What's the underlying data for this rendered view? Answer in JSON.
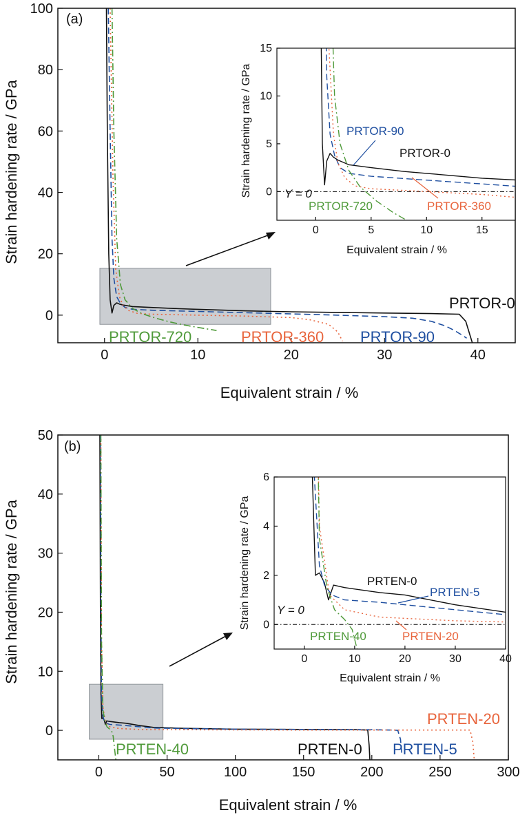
{
  "colors": {
    "black": "#111111",
    "blue": "#1f4fa0",
    "orange": "#e8643c",
    "green": "#4f9a3a",
    "zoom_box": "#b9bec3"
  },
  "chart_data": [
    {
      "type": "line",
      "panel_label": "(a)",
      "xlabel": "Equivalent strain / %",
      "ylabel": "Strain hardening rate / GPa",
      "xlim": [
        -5,
        44
      ],
      "ylim": [
        -9,
        100
      ],
      "xticks": [
        0,
        10,
        20,
        30,
        40
      ],
      "yticks": [
        0,
        20,
        40,
        60,
        80,
        100
      ],
      "zoom_box": {
        "x": [
          -0.5,
          17.8
        ],
        "y": [
          -3,
          15.3
        ]
      },
      "series": [
        {
          "name": "PRTOR-0",
          "color": "#111111",
          "dash": "solid",
          "x": [
            0.2,
            0.3,
            0.45,
            0.6,
            0.8,
            1.0,
            1.3,
            1.6,
            2.0,
            3,
            5,
            8,
            10,
            15,
            20,
            25,
            30,
            35,
            38,
            38.7,
            39.1,
            39.4
          ],
          "y": [
            100,
            60,
            20,
            5,
            0.7,
            3.2,
            4.0,
            3.6,
            3.3,
            2.8,
            2.5,
            2.1,
            1.9,
            1.4,
            1.1,
            0.9,
            0.7,
            0.5,
            0.3,
            -2,
            -6,
            -9
          ]
        },
        {
          "name": "PRTOR-90",
          "color": "#1f4fa0",
          "dash": "dashed",
          "x": [
            0.4,
            0.6,
            0.8,
            1.0,
            1.3,
            1.7,
            2.2,
            3,
            5,
            10,
            15,
            20,
            25,
            30,
            33,
            35,
            36.5,
            37.5,
            38.3,
            38.8
          ],
          "y": [
            100,
            60,
            25,
            12,
            6,
            3.8,
            2.5,
            1.9,
            1.6,
            1.2,
            0.8,
            0.4,
            0,
            -0.5,
            -1,
            -2,
            -3.5,
            -5,
            -6.5,
            -7.5
          ]
        },
        {
          "name": "PRTOR-360",
          "color": "#e8643c",
          "dash": "dotted",
          "x": [
            0.6,
            0.9,
            1.2,
            1.6,
            2.0,
            2.6,
            3.5,
            5,
            10,
            15,
            20,
            22,
            24,
            25,
            25.5
          ],
          "y": [
            100,
            45,
            15,
            6,
            3,
            1.5,
            0.6,
            0.3,
            0,
            -0.3,
            -0.8,
            -1.5,
            -3,
            -5.5,
            -8.5
          ]
        },
        {
          "name": "PRTOR-720",
          "color": "#4f9a3a",
          "dash": "dashdot",
          "x": [
            0.8,
            1.0,
            1.3,
            1.7,
            2.2,
            3,
            4,
            5.5,
            7,
            8.5,
            10,
            11,
            12
          ],
          "y": [
            100,
            60,
            25,
            10,
            5,
            2.2,
            0.5,
            -1,
            -2.2,
            -3.2,
            -4,
            -4.5,
            -5
          ]
        }
      ],
      "series_labels": {
        "PRTOR-0": "PRTOR-0",
        "PRTOR-90": "PRTOR-90",
        "PRTOR-360": "PRTOR-360",
        "PRTOR-720": "PRTOR-720"
      },
      "inset": {
        "xlabel": "Equivalent strain / %",
        "ylabel": "Strain hardening rate / GPa",
        "xlim": [
          -3.5,
          18
        ],
        "ylim": [
          -3,
          15
        ],
        "xticks": [
          0,
          5,
          10,
          15
        ],
        "yticks": [
          0,
          5,
          10,
          15
        ],
        "baseline_label": "Y = 0",
        "labels": {
          "PRTOR-90": "PRTOR-90",
          "PRTOR-0": "PRTOR-0",
          "PRTOR-360": "PRTOR-360",
          "PRTOR-720": "PRTOR-720"
        }
      }
    },
    {
      "type": "line",
      "panel_label": "(b)",
      "xlabel": "Equivalent strain / %",
      "ylabel": "Strain hardening rate / GPa",
      "xlim": [
        -30,
        300
      ],
      "ylim": [
        -5,
        50
      ],
      "xticks": [
        0,
        50,
        100,
        150,
        200,
        250,
        300
      ],
      "yticks": [
        0,
        10,
        20,
        30,
        40,
        50
      ],
      "zoom_box": {
        "x": [
          -7,
          47
        ],
        "y": [
          -1.5,
          7.8
        ]
      },
      "series": [
        {
          "name": "PRTEN-0",
          "color": "#111111",
          "dash": "solid",
          "x": [
            0.8,
            1.2,
            1.6,
            2.2,
            3,
            4,
            4.8,
            5.8,
            8,
            15,
            20,
            30,
            40,
            60,
            100,
            150,
            190,
            197,
            198,
            198.6
          ],
          "y": [
            50,
            20,
            6,
            2.0,
            2.1,
            1.7,
            1.0,
            1.6,
            1.5,
            1.3,
            1.2,
            0.8,
            0.5,
            0.35,
            0.2,
            0.15,
            0.1,
            0.05,
            -2.5,
            -5
          ]
        },
        {
          "name": "PRTEN-5",
          "color": "#1f4fa0",
          "dash": "dashed",
          "x": [
            1.2,
            1.6,
            2,
            3,
            4,
            5.5,
            8,
            15,
            20,
            30,
            40,
            60,
            100,
            150,
            200,
            215,
            219,
            221,
            222
          ],
          "y": [
            50,
            20,
            6,
            2.4,
            1.6,
            1.2,
            1.0,
            0.9,
            0.8,
            0.6,
            0.4,
            0.3,
            0.2,
            0.15,
            0.1,
            0.05,
            0,
            -1.5,
            -4
          ]
        },
        {
          "name": "PRTEN-20",
          "color": "#e8643c",
          "dash": "dotted",
          "x": [
            1.5,
            2,
            3,
            5,
            8,
            15,
            20,
            30,
            40,
            60,
            100,
            150,
            200,
            250,
            272,
            274,
            275
          ],
          "y": [
            50,
            15,
            4,
            1.2,
            0.6,
            0.3,
            0.25,
            0.15,
            0.1,
            0.1,
            0.08,
            0.05,
            0.05,
            0.05,
            0.05,
            -2,
            -5
          ]
        },
        {
          "name": "PRTEN-40",
          "color": "#4f9a3a",
          "dash": "dashdot",
          "x": [
            1.5,
            2,
            3,
            4.5,
            6,
            8,
            9.5,
            10.5,
            11.5,
            12.5
          ],
          "y": [
            50,
            15,
            3.5,
            1.5,
            0.6,
            0.2,
            -0.2,
            -1,
            -3,
            -5
          ]
        }
      ],
      "series_labels": {
        "PRTEN-0": "PRTEN-0",
        "PRTEN-5": "PRTEN-5",
        "PRTEN-20": "PRTEN-20",
        "PRTEN-40": "PRTEN-40"
      },
      "inset": {
        "xlabel": "Equivalent strain / %",
        "ylabel": "Strain hardening rate / GPa",
        "xlim": [
          -6,
          40
        ],
        "ylim": [
          -1,
          6
        ],
        "xticks": [
          0,
          10,
          20,
          30,
          40
        ],
        "yticks": [
          0,
          2,
          4,
          6
        ],
        "baseline_label": "Y = 0",
        "labels": {
          "PRTEN-0": "PRTEN-0",
          "PRTEN-5": "PRTEN-5",
          "PRTEN-20": "PRTEN-20",
          "PRTEN-40": "PRTEN-40"
        }
      }
    }
  ]
}
